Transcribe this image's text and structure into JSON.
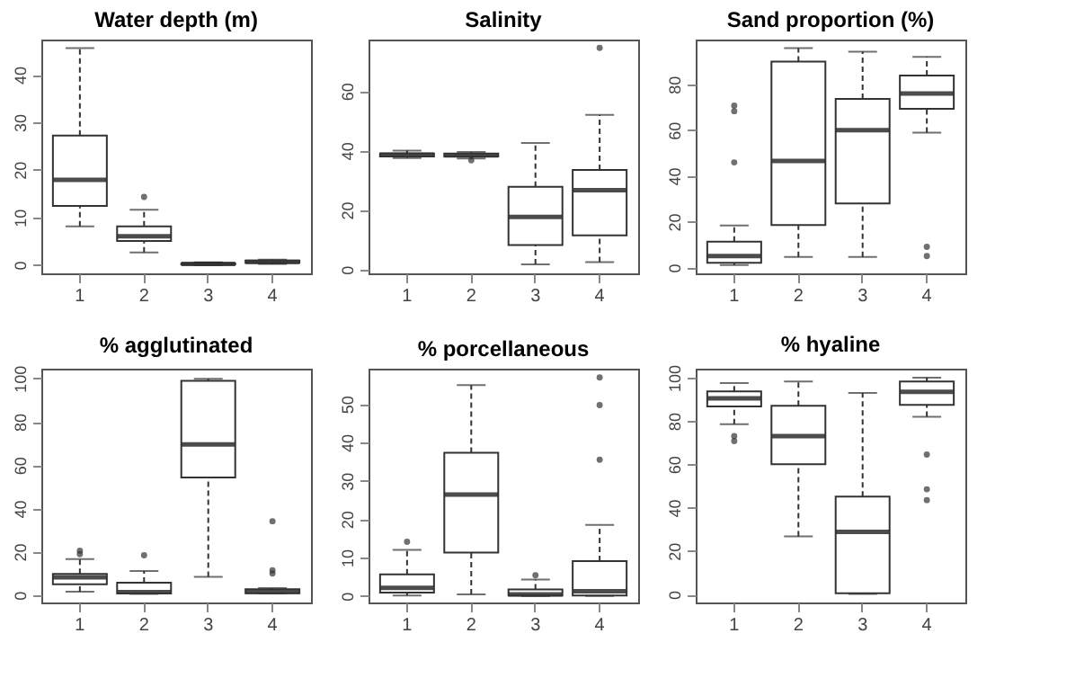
{
  "chart_data": [
    {
      "type": "box",
      "title": "Water depth (m)",
      "categories": [
        "1",
        "2",
        "3",
        "4"
      ],
      "ylim": [
        -1.8,
        47.4
      ],
      "yticks": [
        0,
        10,
        20,
        30,
        40
      ],
      "boxes": [
        {
          "low": 8.1,
          "q1": 12.4,
          "median": 17.9,
          "q3": 27.2,
          "high": 45.6
        },
        {
          "low": 2.6,
          "q1": 5.0,
          "median": 6.0,
          "q3": 8.1,
          "high": 11.6,
          "outliers": [
            14.3
          ]
        },
        {
          "low": 0,
          "q1": 0.1,
          "median": 0.2,
          "q3": 0.3,
          "high": 0.5
        },
        {
          "low": 0.2,
          "q1": 0.4,
          "median": 0.6,
          "q3": 0.9,
          "high": 1.1
        }
      ]
    },
    {
      "type": "box",
      "title": "Salinity",
      "categories": [
        "1",
        "2",
        "3",
        "4"
      ],
      "ylim": [
        -1.3,
        77.3
      ],
      "yticks": [
        0,
        20,
        40,
        60
      ],
      "boxes": [
        {
          "low": 37.5,
          "q1": 38,
          "median": 38.6,
          "q3": 39,
          "high": 40
        },
        {
          "low": 37.3,
          "q1": 38,
          "median": 38.4,
          "q3": 39,
          "high": 39.5,
          "outliers": [
            36.7
          ]
        },
        {
          "low": 1.7,
          "q1": 8.2,
          "median": 17.7,
          "q3": 27.8,
          "high": 42.5
        },
        {
          "low": 2.5,
          "q1": 11.5,
          "median": 26.7,
          "q3": 33.5,
          "high": 52,
          "outliers": [
            74.5
          ]
        }
      ]
    },
    {
      "type": "box",
      "title": "Sand proportion (%)",
      "categories": [
        "1",
        "2",
        "3",
        "4"
      ],
      "ylim": [
        -2.6,
        99.6
      ],
      "yticks": [
        0,
        20,
        40,
        60,
        80
      ],
      "boxes": [
        {
          "low": 1,
          "q1": 2,
          "median": 5,
          "q3": 11.3,
          "high": 18.3,
          "outliers": [
            45.9,
            68.3,
            70.7
          ]
        },
        {
          "low": 4.6,
          "q1": 18.5,
          "median": 46.5,
          "q3": 90,
          "high": 95.9
        },
        {
          "low": 4.6,
          "q1": 28,
          "median": 60,
          "q3": 73.7,
          "high": 94.3
        },
        {
          "low": 58.9,
          "q1": 69.3,
          "median": 76,
          "q3": 83.9,
          "high": 92,
          "outliers": [
            5,
            9
          ]
        }
      ]
    },
    {
      "type": "box",
      "title": "% agglutinated",
      "categories": [
        "1",
        "2",
        "3",
        "4"
      ],
      "ylim": [
        -3.4,
        104.5
      ],
      "yticks": [
        0,
        20,
        40,
        60,
        80,
        100
      ],
      "boxes": [
        {
          "low": 1.6,
          "q1": 5,
          "median": 8.2,
          "q3": 9.8,
          "high": 16.6,
          "outliers": [
            18.9,
            20.5
          ]
        },
        {
          "low": 0.5,
          "q1": 0.7,
          "median": 1.4,
          "q3": 5.7,
          "high": 11.1,
          "outliers": [
            18.4
          ]
        },
        {
          "low": 8.4,
          "q1": 54.3,
          "median": 69.5,
          "q3": 98.9,
          "high": 99.8
        },
        {
          "low": 0.7,
          "q1": 0.9,
          "median": 1.6,
          "q3": 2.7,
          "high": 3.2,
          "outliers": [
            10,
            11.4,
            34.1
          ]
        }
      ]
    },
    {
      "type": "box",
      "title": "% porcellaneous",
      "categories": [
        "1",
        "2",
        "3",
        "4"
      ],
      "ylim": [
        -1.7,
        59.2
      ],
      "yticks": [
        0,
        10,
        20,
        30,
        40,
        50
      ],
      "boxes": [
        {
          "low": 0.1,
          "q1": 0.9,
          "median": 2.1,
          "q3": 5.6,
          "high": 12,
          "outliers": [
            14.1
          ]
        },
        {
          "low": 0.4,
          "q1": 11.3,
          "median": 26.4,
          "q3": 37.3,
          "high": 54.9
        },
        {
          "low": 0,
          "q1": 0.1,
          "median": 0.4,
          "q3": 1.7,
          "high": 4.3,
          "outliers": [
            5.4
          ]
        },
        {
          "low": 0,
          "q1": 0.1,
          "median": 1.2,
          "q3": 9.1,
          "high": 18.5,
          "outliers": [
            35.5,
            49.7,
            56.9
          ]
        }
      ]
    },
    {
      "type": "box",
      "title": "% hyaline",
      "categories": [
        "1",
        "2",
        "3",
        "4"
      ],
      "ylim": [
        -3.7,
        104.1
      ],
      "yticks": [
        0,
        20,
        40,
        60,
        80,
        100
      ],
      "boxes": [
        {
          "low": 78.5,
          "q1": 86.7,
          "median": 90.4,
          "q3": 93.6,
          "high": 97.5,
          "outliers": [
            70.7,
            73
          ]
        },
        {
          "low": 26.8,
          "q1": 60,
          "median": 73,
          "q3": 87,
          "high": 98.2
        },
        {
          "low": 0.2,
          "q1": 0.5,
          "median": 28.8,
          "q3": 45.1,
          "high": 92.9
        },
        {
          "low": 81.9,
          "q1": 87.4,
          "median": 93.4,
          "q3": 98.2,
          "high": 100,
          "outliers": [
            43.5,
            48.5,
            64.5
          ]
        }
      ]
    }
  ]
}
